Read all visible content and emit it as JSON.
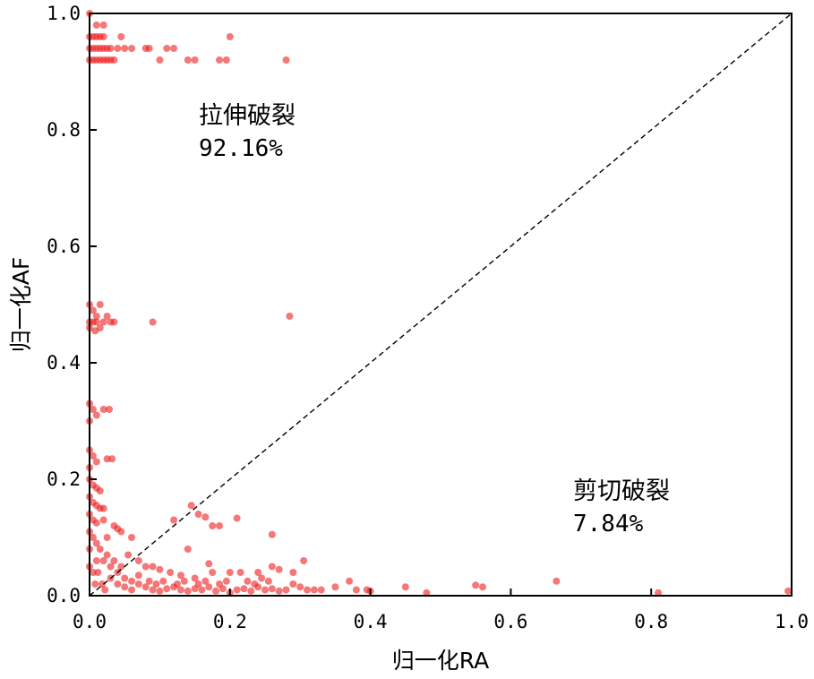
{
  "chart_data": {
    "type": "scatter",
    "title": "",
    "xlabel": "归一化RA",
    "ylabel": "归一化AF",
    "xlim": [
      0,
      1
    ],
    "ylim": [
      0,
      1
    ],
    "xticks": [
      "0.0",
      "0.2",
      "0.4",
      "0.6",
      "0.8",
      "1.0"
    ],
    "yticks": [
      "0.0",
      "0.2",
      "0.4",
      "0.6",
      "0.8",
      "1.0"
    ],
    "grid": false,
    "point_color": "#ee1c1c",
    "reference_line": {
      "style": "dashed",
      "from": [
        0,
        0
      ],
      "to": [
        1,
        1
      ]
    },
    "annotations": [
      {
        "label": "拉伸破裂",
        "value": "92.16%"
      },
      {
        "label": "剪切破裂",
        "value": "7.84%"
      }
    ],
    "series": [
      {
        "values": [
          [
            0.0,
            1.0
          ],
          [
            0.01,
            0.98
          ],
          [
            0.02,
            0.98
          ],
          [
            0.0,
            0.96
          ],
          [
            0.005,
            0.96
          ],
          [
            0.01,
            0.96
          ],
          [
            0.015,
            0.96
          ],
          [
            0.02,
            0.96
          ],
          [
            0.0,
            0.94
          ],
          [
            0.005,
            0.94
          ],
          [
            0.01,
            0.94
          ],
          [
            0.015,
            0.94
          ],
          [
            0.02,
            0.94
          ],
          [
            0.025,
            0.94
          ],
          [
            0.03,
            0.94
          ],
          [
            0.04,
            0.94
          ],
          [
            0.05,
            0.94
          ],
          [
            0.06,
            0.94
          ],
          [
            0.08,
            0.94
          ],
          [
            0.085,
            0.94
          ],
          [
            0.11,
            0.94
          ],
          [
            0.12,
            0.94
          ],
          [
            0.2,
            0.96
          ],
          [
            0.0,
            0.92
          ],
          [
            0.005,
            0.92
          ],
          [
            0.01,
            0.92
          ],
          [
            0.015,
            0.92
          ],
          [
            0.02,
            0.92
          ],
          [
            0.025,
            0.92
          ],
          [
            0.03,
            0.92
          ],
          [
            0.035,
            0.92
          ],
          [
            0.045,
            0.96
          ],
          [
            0.1,
            0.92
          ],
          [
            0.14,
            0.92
          ],
          [
            0.15,
            0.92
          ],
          [
            0.185,
            0.92
          ],
          [
            0.195,
            0.92
          ],
          [
            0.28,
            0.92
          ],
          [
            0.0,
            0.5
          ],
          [
            0.005,
            0.49
          ],
          [
            0.01,
            0.48
          ],
          [
            0.015,
            0.5
          ],
          [
            0.0,
            0.47
          ],
          [
            0.005,
            0.47
          ],
          [
            0.01,
            0.47
          ],
          [
            0.015,
            0.46
          ],
          [
            0.02,
            0.47
          ],
          [
            0.025,
            0.48
          ],
          [
            0.03,
            0.47
          ],
          [
            0.035,
            0.47
          ],
          [
            0.09,
            0.47
          ],
          [
            0.285,
            0.48
          ],
          [
            0.0,
            0.46
          ],
          [
            0.008,
            0.455
          ],
          [
            0.0,
            0.33
          ],
          [
            0.005,
            0.32
          ],
          [
            0.01,
            0.31
          ],
          [
            0.02,
            0.32
          ],
          [
            0.028,
            0.32
          ],
          [
            0.0,
            0.3
          ],
          [
            0.0,
            0.25
          ],
          [
            0.005,
            0.24
          ],
          [
            0.01,
            0.23
          ],
          [
            0.025,
            0.235
          ],
          [
            0.032,
            0.235
          ],
          [
            0.0,
            0.22
          ],
          [
            0.0,
            0.2
          ],
          [
            0.005,
            0.19
          ],
          [
            0.01,
            0.185
          ],
          [
            0.015,
            0.18
          ],
          [
            0.0,
            0.17
          ],
          [
            0.005,
            0.16
          ],
          [
            0.01,
            0.155
          ],
          [
            0.015,
            0.15
          ],
          [
            0.02,
            0.15
          ],
          [
            0.0,
            0.14
          ],
          [
            0.005,
            0.13
          ],
          [
            0.01,
            0.125
          ],
          [
            0.02,
            0.13
          ],
          [
            0.035,
            0.12
          ],
          [
            0.04,
            0.115
          ],
          [
            0.045,
            0.11
          ],
          [
            0.025,
            0.1
          ],
          [
            0.06,
            0.1
          ],
          [
            0.145,
            0.155
          ],
          [
            0.165,
            0.135
          ],
          [
            0.155,
            0.14
          ],
          [
            0.21,
            0.133
          ],
          [
            0.175,
            0.12
          ],
          [
            0.185,
            0.12
          ],
          [
            0.26,
            0.105
          ],
          [
            0.12,
            0.13
          ],
          [
            0.14,
            0.08
          ],
          [
            0.055,
            0.07
          ],
          [
            0.07,
            0.06
          ],
          [
            0.08,
            0.05
          ],
          [
            0.09,
            0.05
          ],
          [
            0.1,
            0.045
          ],
          [
            0.115,
            0.04
          ],
          [
            0.13,
            0.035
          ],
          [
            0.15,
            0.03
          ],
          [
            0.17,
            0.055
          ],
          [
            0.175,
            0.04
          ],
          [
            0.2,
            0.04
          ],
          [
            0.215,
            0.04
          ],
          [
            0.24,
            0.04
          ],
          [
            0.245,
            0.03
          ],
          [
            0.26,
            0.05
          ],
          [
            0.27,
            0.045
          ],
          [
            0.29,
            0.04
          ],
          [
            0.305,
            0.06
          ],
          [
            0.29,
            0.02
          ],
          [
            0.32,
            0.01
          ],
          [
            0.33,
            0.01
          ],
          [
            0.35,
            0.015
          ],
          [
            0.37,
            0.025
          ],
          [
            0.38,
            0.01
          ],
          [
            0.395,
            0.01
          ],
          [
            0.4,
            0.008
          ],
          [
            0.45,
            0.015
          ],
          [
            0.48,
            0.005
          ],
          [
            0.55,
            0.018
          ],
          [
            0.56,
            0.015
          ],
          [
            0.665,
            0.025
          ],
          [
            0.81,
            0.005
          ],
          [
            0.995,
            0.008
          ],
          [
            0.03,
            0.03
          ],
          [
            0.04,
            0.02
          ],
          [
            0.05,
            0.015
          ],
          [
            0.06,
            0.01
          ],
          [
            0.07,
            0.02
          ],
          [
            0.08,
            0.015
          ],
          [
            0.09,
            0.01
          ],
          [
            0.1,
            0.008
          ],
          [
            0.11,
            0.012
          ],
          [
            0.12,
            0.015
          ],
          [
            0.13,
            0.01
          ],
          [
            0.14,
            0.008
          ],
          [
            0.15,
            0.012
          ],
          [
            0.16,
            0.01
          ],
          [
            0.17,
            0.015
          ],
          [
            0.18,
            0.008
          ],
          [
            0.19,
            0.012
          ],
          [
            0.2,
            0.005
          ],
          [
            0.21,
            0.01
          ],
          [
            0.22,
            0.012
          ],
          [
            0.23,
            0.008
          ],
          [
            0.24,
            0.015
          ],
          [
            0.25,
            0.01
          ],
          [
            0.26,
            0.012
          ],
          [
            0.27,
            0.008
          ],
          [
            0.28,
            0.01
          ],
          [
            0.035,
            0.06
          ],
          [
            0.045,
            0.05
          ],
          [
            0.025,
            0.07
          ],
          [
            0.015,
            0.08
          ],
          [
            0.01,
            0.09
          ],
          [
            0.005,
            0.1
          ],
          [
            0.02,
            0.06
          ],
          [
            0.03,
            0.05
          ],
          [
            0.04,
            0.04
          ],
          [
            0.05,
            0.03
          ],
          [
            0.06,
            0.025
          ],
          [
            0.07,
            0.035
          ],
          [
            0.085,
            0.025
          ],
          [
            0.095,
            0.02
          ],
          [
            0.105,
            0.025
          ],
          [
            0.125,
            0.02
          ],
          [
            0.135,
            0.025
          ],
          [
            0.155,
            0.02
          ],
          [
            0.165,
            0.025
          ],
          [
            0.185,
            0.02
          ],
          [
            0.195,
            0.025
          ],
          [
            0.225,
            0.025
          ],
          [
            0.235,
            0.02
          ],
          [
            0.255,
            0.025
          ],
          [
            0.3,
            0.015
          ],
          [
            0.31,
            0.01
          ],
          [
            0.0,
            0.05
          ],
          [
            0.005,
            0.04
          ],
          [
            0.0,
            0.08
          ],
          [
            0.0,
            0.11
          ],
          [
            0.01,
            0.06
          ],
          [
            0.012,
            0.04
          ],
          [
            0.018,
            0.02
          ],
          [
            0.022,
            0.01
          ],
          [
            0.008,
            0.02
          ]
        ]
      }
    ]
  }
}
